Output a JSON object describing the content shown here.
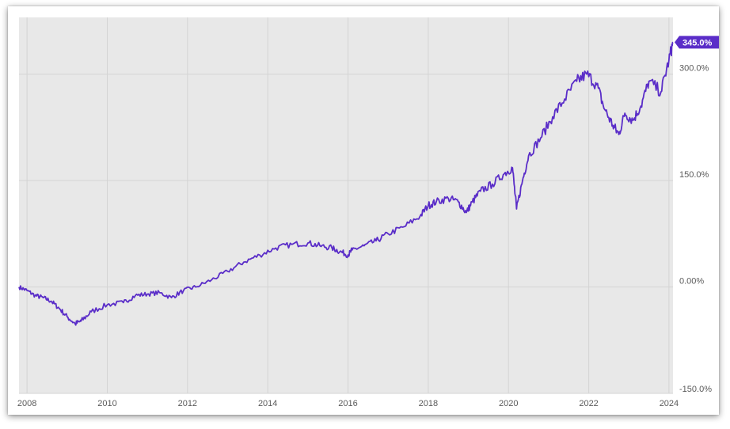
{
  "chart_data": {
    "type": "line",
    "title": "",
    "xlabel": "",
    "ylabel": "",
    "x_range": [
      2007.8,
      2024.1
    ],
    "ylim": [
      -150,
      380
    ],
    "grid": true,
    "line_color": "#5a2dc8",
    "badge_color": "#5a2dc8",
    "last_value_label": "345.0%",
    "x_ticks": [
      {
        "value": 2008,
        "label": "2008"
      },
      {
        "value": 2010,
        "label": "2010"
      },
      {
        "value": 2012,
        "label": "2012"
      },
      {
        "value": 2014,
        "label": "2014"
      },
      {
        "value": 2016,
        "label": "2016"
      },
      {
        "value": 2018,
        "label": "2018"
      },
      {
        "value": 2020,
        "label": "2020"
      },
      {
        "value": 2022,
        "label": "2022"
      },
      {
        "value": 2024,
        "label": "2024"
      }
    ],
    "y_ticks": [
      {
        "value": 300,
        "label": "300.0%"
      },
      {
        "value": 150,
        "label": "150.0%"
      },
      {
        "value": 0,
        "label": "0.00%"
      },
      {
        "value": -150,
        "label": "-150.0%"
      }
    ],
    "series": [
      {
        "x": [
          2007.8,
          2008.0,
          2008.2,
          2008.4,
          2008.6,
          2008.8,
          2009.0,
          2009.2,
          2009.35,
          2009.6,
          2010.0,
          2010.4,
          2010.7,
          2011.0,
          2011.3,
          2011.6,
          2011.9,
          2012.2,
          2012.6,
          2013.0,
          2013.4,
          2013.8,
          2014.2,
          2014.6,
          2015.0,
          2015.3,
          2015.6,
          2015.8,
          2016.0,
          2016.1,
          2016.4,
          2016.7,
          2017.0,
          2017.4,
          2017.8,
          2018.0,
          2018.2,
          2018.5,
          2018.75,
          2018.95,
          2019.1,
          2019.3,
          2019.6,
          2019.9,
          2020.1,
          2020.2,
          2020.35,
          2020.5,
          2020.8,
          2021.1,
          2021.4,
          2021.7,
          2021.95,
          2022.2,
          2022.4,
          2022.6,
          2022.75,
          2022.9,
          2023.1,
          2023.3,
          2023.5,
          2023.8,
          2024.0,
          2024.1
        ],
        "y": [
          0,
          -5,
          -12,
          -15,
          -20,
          -30,
          -42,
          -52,
          -48,
          -35,
          -25,
          -22,
          -12,
          -10,
          -8,
          -15,
          -5,
          0,
          10,
          22,
          35,
          45,
          55,
          60,
          62,
          58,
          55,
          50,
          45,
          52,
          58,
          65,
          75,
          85,
          100,
          115,
          120,
          125,
          120,
          105,
          120,
          135,
          145,
          160,
          168,
          110,
          150,
          185,
          210,
          240,
          265,
          290,
          300,
          285,
          250,
          228,
          215,
          245,
          235,
          255,
          290,
          275,
          320,
          345
        ]
      }
    ]
  }
}
